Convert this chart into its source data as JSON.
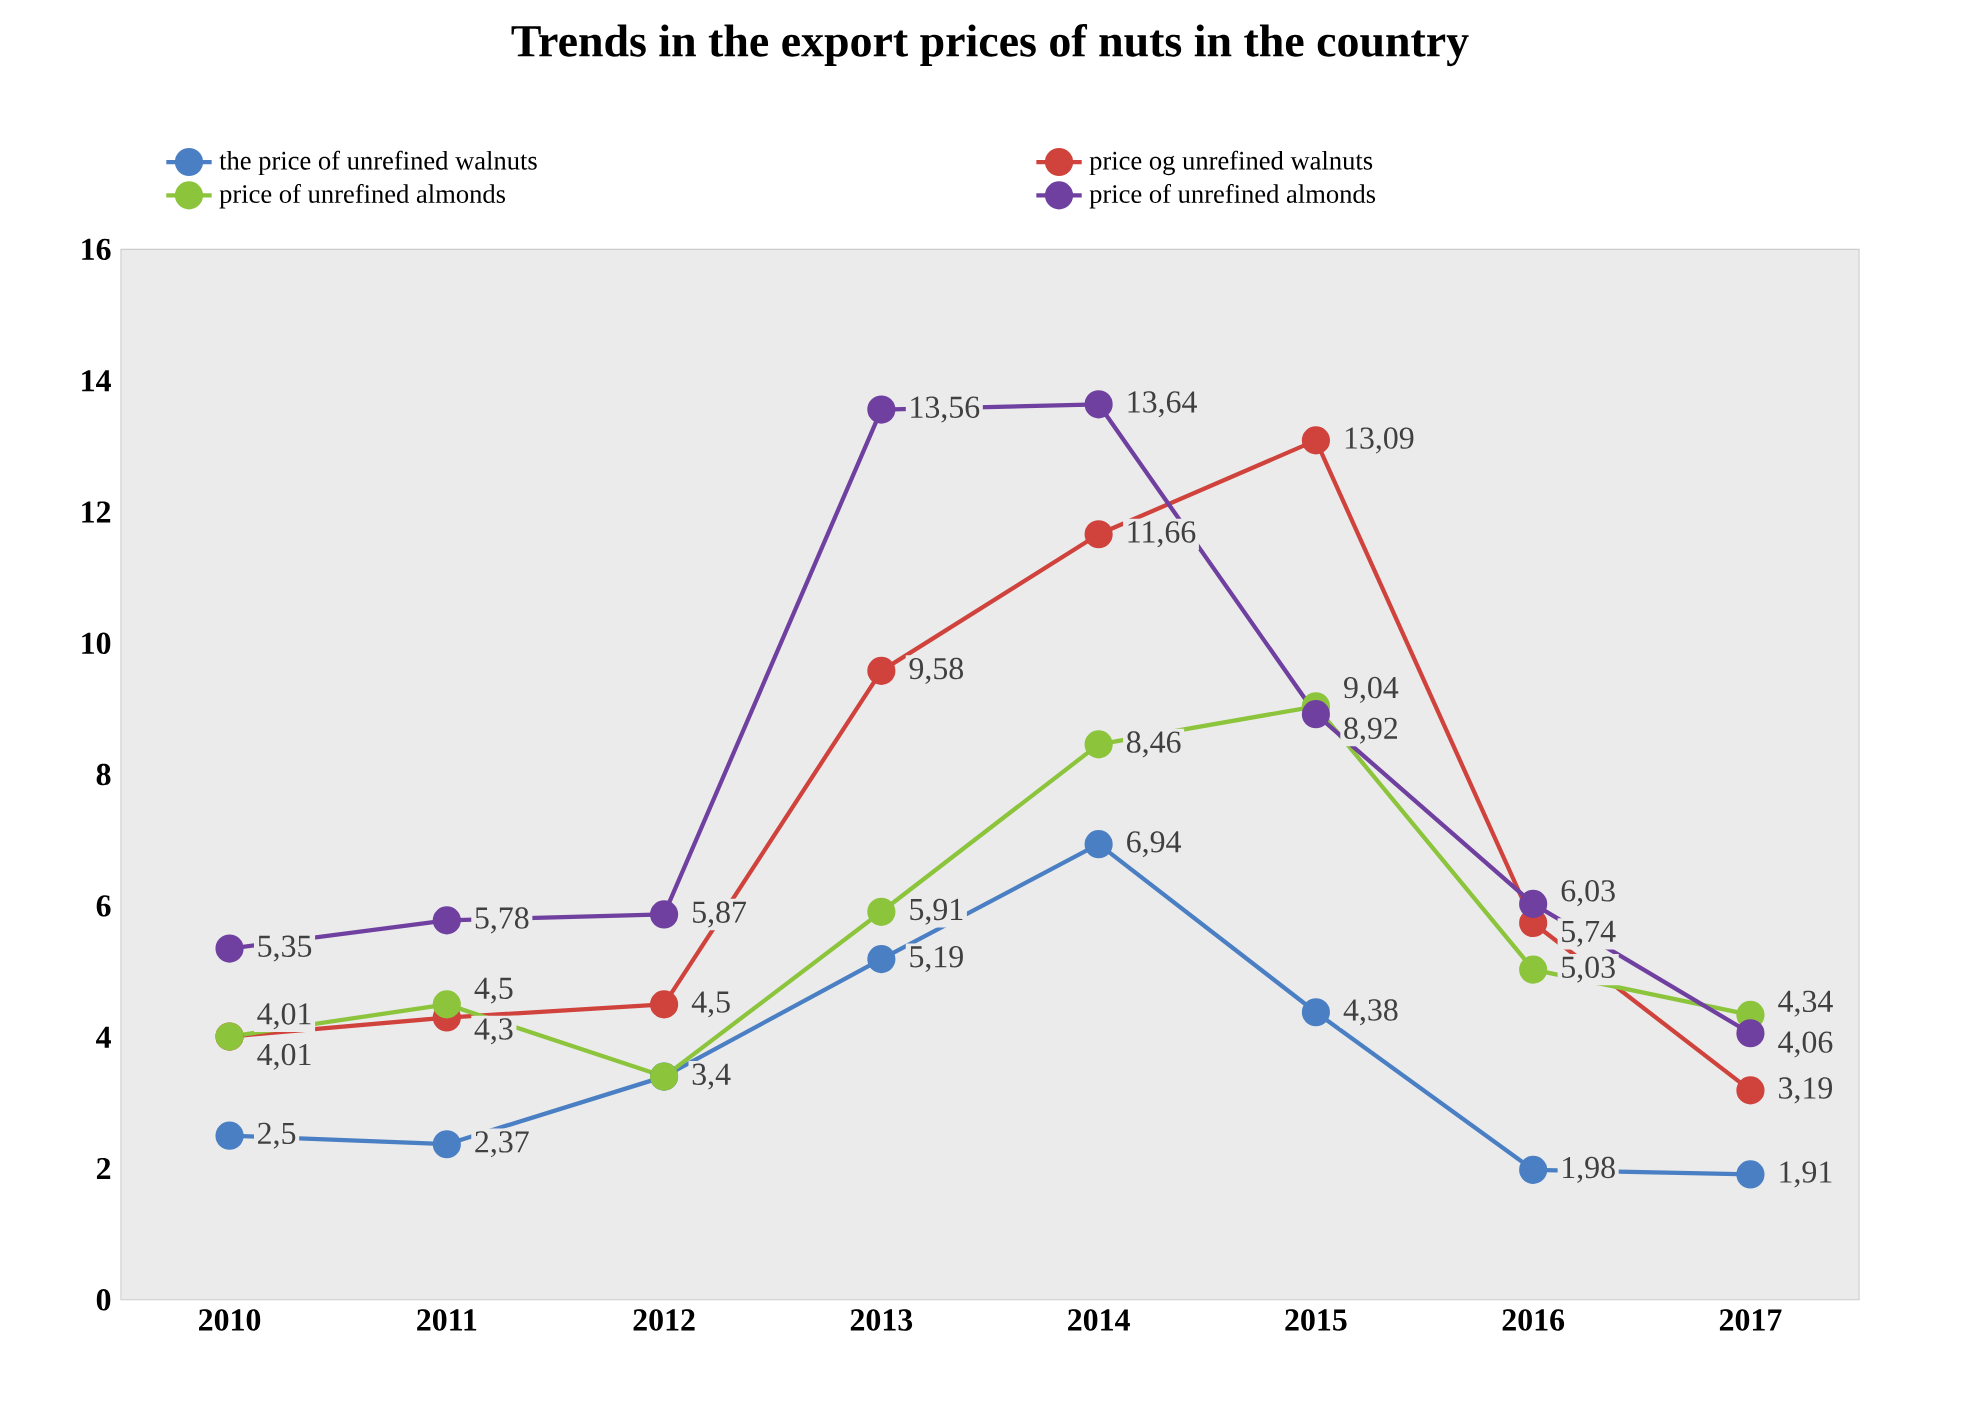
{
  "chart_data": {
    "type": "line",
    "title": "Trends in the export prices of nuts in the country",
    "categories": [
      "2010",
      "2011",
      "2012",
      "2013",
      "2014",
      "2015",
      "2016",
      "2017"
    ],
    "series": [
      {
        "name": "the price of unrefined walnuts",
        "color": "#4a7fc4",
        "values": [
          2.5,
          2.37,
          3.4,
          5.19,
          6.94,
          4.38,
          1.98,
          1.91
        ],
        "value_labels": [
          "2,5",
          "2,37",
          null,
          "5,19",
          "6,94",
          "4,38",
          "1,98",
          "1,91"
        ]
      },
      {
        "name": "price og unrefined walnuts",
        "color": "#d0423c",
        "values": [
          4.01,
          4.3,
          4.5,
          9.58,
          11.66,
          13.09,
          5.74,
          3.19
        ],
        "value_labels": [
          "4,01",
          "4,3",
          "4,5",
          "9,58",
          "11,66",
          "13,09",
          "5,74",
          "3,19"
        ]
      },
      {
        "name": "price of unrefined almonds",
        "color": "#8cc43c",
        "values": [
          4.01,
          4.5,
          3.4,
          5.91,
          8.46,
          9.04,
          5.03,
          4.34
        ],
        "value_labels": [
          "4,01",
          "4,5",
          "3,4",
          "5,91",
          "8,46",
          "9,04",
          "5,03",
          "4,34"
        ]
      },
      {
        "name": "price of unrefined almonds",
        "color": "#7040a0",
        "values": [
          5.35,
          5.78,
          5.87,
          13.56,
          13.64,
          8.92,
          6.03,
          4.06
        ],
        "value_labels": [
          "5,35",
          "5,78",
          "5,87",
          "13,56",
          "13,64",
          "8,92",
          "6,03",
          "4,06"
        ]
      }
    ],
    "ylim": [
      0,
      16
    ],
    "yticks": [
      0,
      2,
      4,
      6,
      8,
      10,
      12,
      14,
      16
    ],
    "grid": false,
    "legend": "top",
    "marker": "circle",
    "line_style": "solid"
  }
}
